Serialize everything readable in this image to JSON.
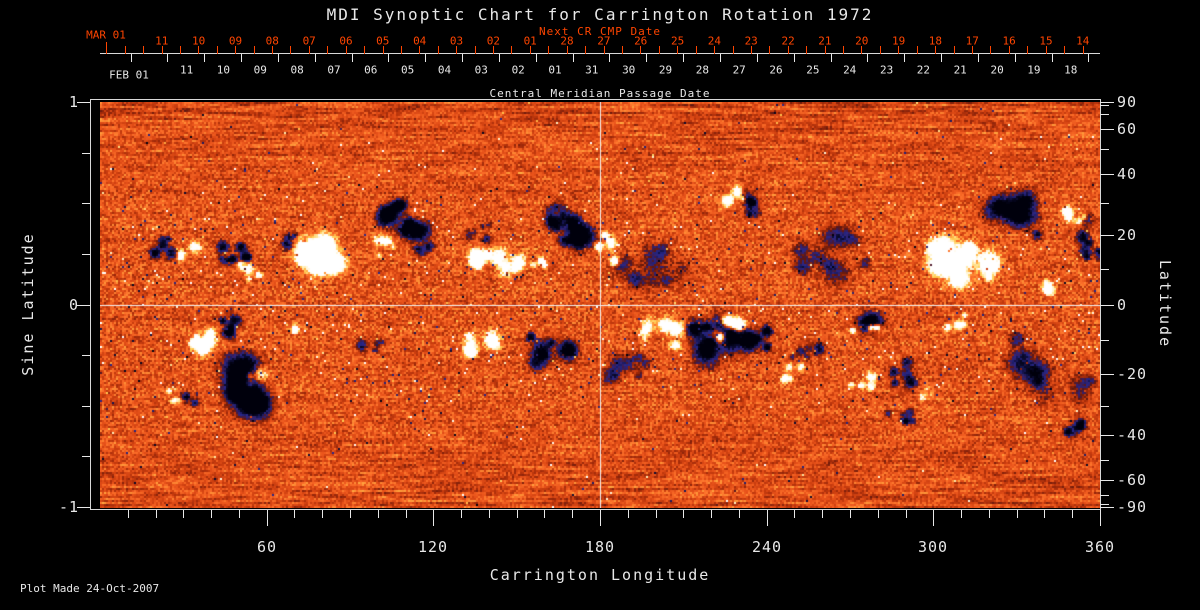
{
  "title": "MDI Synoptic Chart for Carrington Rotation 1972",
  "annotations": {
    "next_cr_label": "Next CR CMP Date",
    "cmp_axis_label": "Central Meridian Passage Date",
    "plot_made": "Plot Made 24-Oct-2007"
  },
  "axes": {
    "top_red": {
      "month_label": "MAR 01",
      "day_labels": [
        "11",
        "10",
        "09",
        "08",
        "07",
        "06",
        "05",
        "04",
        "03",
        "02",
        "01",
        "28",
        "27",
        "26",
        "25",
        "24",
        "23",
        "22",
        "21",
        "20",
        "19",
        "18",
        "17",
        "16",
        "15",
        "14"
      ]
    },
    "top_white": {
      "month_label": "FEB 01",
      "day_labels": [
        "11",
        "10",
        "09",
        "08",
        "07",
        "06",
        "05",
        "04",
        "03",
        "02",
        "01",
        "31",
        "30",
        "29",
        "28",
        "27",
        "26",
        "25",
        "24",
        "23",
        "22",
        "21",
        "20",
        "19",
        "18"
      ]
    },
    "bottom": {
      "title": "Carrington Longitude",
      "tick_labels": [
        "60",
        "120",
        "180",
        "240",
        "300",
        "360"
      ]
    },
    "left": {
      "title": "Sine Latitude",
      "tick_labels": [
        "1",
        "0",
        "-1"
      ]
    },
    "right": {
      "title": "Latitude",
      "tick_labels": [
        "90",
        "60",
        "40",
        "20",
        "0",
        "-20",
        "-40",
        "-60",
        "-90"
      ]
    }
  },
  "colors": {
    "annotation_red": "#ff4500",
    "axis_white": "#e8e8e8",
    "background": "#000000"
  },
  "chart_data": {
    "type": "heatmap",
    "title": "MDI Synoptic Chart for Carrington Rotation 1972",
    "xlabel": "Carrington Longitude",
    "ylabel_left": "Sine Latitude",
    "ylabel_right": "Latitude",
    "x_range_deg": [
      0,
      360
    ],
    "y_range_sine_latitude": [
      -1,
      1
    ],
    "x_major_ticks_deg": [
      60,
      120,
      180,
      240,
      300,
      360
    ],
    "right_major_ticks_deg": [
      90,
      60,
      40,
      20,
      0,
      -20,
      -40,
      -60,
      -90
    ],
    "grid_lines": {
      "longitude_deg": 180,
      "sine_latitude": 0
    },
    "description": "Full-disk line-of-sight magnetic field synoptic map; orange noisy quiet-sun background, dark navy negative-polarity regions, white/yellow positive-polarity regions concentrated in activity bands near sine latitude +0.3 and -0.25",
    "noise": {
      "seed": 12345,
      "base": 0.17,
      "amp": 0.3
    },
    "palette_stops": [
      [
        -1.7,
        0,
        0,
        12
      ],
      [
        -1.15,
        12,
        12,
        52
      ],
      [
        -0.8,
        40,
        40,
        140
      ],
      [
        -0.55,
        55,
        30,
        95
      ],
      [
        -0.35,
        95,
        22,
        12
      ],
      [
        -0.15,
        160,
        42,
        10
      ],
      [
        0.0,
        200,
        60,
        14
      ],
      [
        0.18,
        232,
        82,
        26
      ],
      [
        0.36,
        252,
        112,
        42
      ],
      [
        0.52,
        255,
        158,
        60
      ],
      [
        0.66,
        255,
        206,
        84
      ],
      [
        0.82,
        255,
        240,
        190
      ],
      [
        1.05,
        255,
        255,
        255
      ]
    ],
    "active_regions": {
      "format": [
        "center_x_px_0-1000",
        "center_y_px_0-405",
        "radius_x",
        "radius_y",
        "polarity(-1=dark,+1=bright)",
        "blob_count",
        "amplitude"
      ],
      "list": [
        [
          65,
          143,
          14,
          10,
          -1,
          6,
          1.6
        ],
        [
          85,
          150,
          10,
          8,
          1,
          4,
          1.2
        ],
        [
          135,
          150,
          16,
          12,
          -1,
          7,
          1.8
        ],
        [
          150,
          170,
          12,
          8,
          1,
          4,
          1.4
        ],
        [
          220,
          155,
          22,
          14,
          1,
          8,
          2.0
        ],
        [
          195,
          135,
          10,
          8,
          -1,
          4,
          1.4
        ],
        [
          300,
          115,
          22,
          16,
          -1,
          9,
          2.2
        ],
        [
          285,
          145,
          12,
          8,
          1,
          4,
          1.3
        ],
        [
          320,
          145,
          8,
          6,
          -1,
          3,
          1.2
        ],
        [
          400,
          150,
          26,
          16,
          1,
          9,
          1.8
        ],
        [
          380,
          130,
          14,
          8,
          -1,
          5,
          1.0
        ],
        [
          465,
          125,
          20,
          14,
          -1,
          8,
          2.0
        ],
        [
          455,
          110,
          8,
          5,
          1,
          3,
          1.5
        ],
        [
          440,
          160,
          10,
          7,
          1,
          4,
          1.5
        ],
        [
          505,
          145,
          9,
          16,
          1,
          5,
          1.8
        ],
        [
          550,
          160,
          30,
          25,
          -1,
          10,
          0.7
        ],
        [
          635,
          95,
          12,
          7,
          1,
          4,
          1.6
        ],
        [
          660,
          105,
          14,
          9,
          -1,
          5,
          1.6
        ],
        [
          730,
          150,
          35,
          22,
          -1,
          10,
          0.9
        ],
        [
          860,
          160,
          30,
          20,
          1,
          10,
          1.9
        ],
        [
          910,
          115,
          28,
          18,
          -1,
          9,
          1.6
        ],
        [
          975,
          115,
          10,
          8,
          1,
          4,
          1.5
        ],
        [
          950,
          185,
          8,
          6,
          1,
          3,
          1.3
        ],
        [
          990,
          135,
          12,
          20,
          -1,
          7,
          1.6
        ],
        [
          105,
          235,
          12,
          12,
          1,
          5,
          1.7
        ],
        [
          135,
          222,
          14,
          9,
          -1,
          6,
          1.7
        ],
        [
          145,
          283,
          18,
          22,
          -1,
          9,
          2.3
        ],
        [
          152,
          273,
          7,
          9,
          1,
          3,
          2.0
        ],
        [
          75,
          293,
          10,
          6,
          1,
          3,
          1.4
        ],
        [
          90,
          295,
          8,
          5,
          -1,
          3,
          1.2
        ],
        [
          190,
          228,
          5,
          4,
          1,
          2,
          1.3
        ],
        [
          265,
          245,
          20,
          12,
          -1,
          6,
          0.8
        ],
        [
          385,
          242,
          18,
          12,
          1,
          6,
          1.6
        ],
        [
          450,
          250,
          22,
          16,
          -1,
          8,
          1.7
        ],
        [
          520,
          260,
          25,
          15,
          -1,
          8,
          0.9
        ],
        [
          560,
          230,
          18,
          14,
          1,
          6,
          1.5
        ],
        [
          610,
          235,
          22,
          16,
          -1,
          9,
          2.2
        ],
        [
          630,
          225,
          12,
          10,
          1,
          5,
          2.2
        ],
        [
          655,
          235,
          12,
          10,
          -1,
          5,
          2.4
        ],
        [
          690,
          270,
          10,
          8,
          1,
          4,
          1.5
        ],
        [
          710,
          250,
          20,
          10,
          -1,
          6,
          1.1
        ],
        [
          765,
          222,
          14,
          10,
          1,
          5,
          1.8
        ],
        [
          768,
          222,
          6,
          5,
          -1,
          2,
          2.0
        ],
        [
          760,
          280,
          12,
          8,
          1,
          4,
          1.4
        ],
        [
          800,
          268,
          12,
          14,
          -1,
          6,
          1.5
        ],
        [
          825,
          290,
          7,
          5,
          1,
          3,
          1.4
        ],
        [
          855,
          218,
          10,
          8,
          1,
          4,
          1.6
        ],
        [
          950,
          265,
          40,
          30,
          -1,
          12,
          0.8
        ],
        [
          800,
          313,
          14,
          10,
          -1,
          6,
          1.4
        ],
        [
          965,
          320,
          16,
          10,
          -1,
          6,
          1.3
        ]
      ]
    }
  }
}
